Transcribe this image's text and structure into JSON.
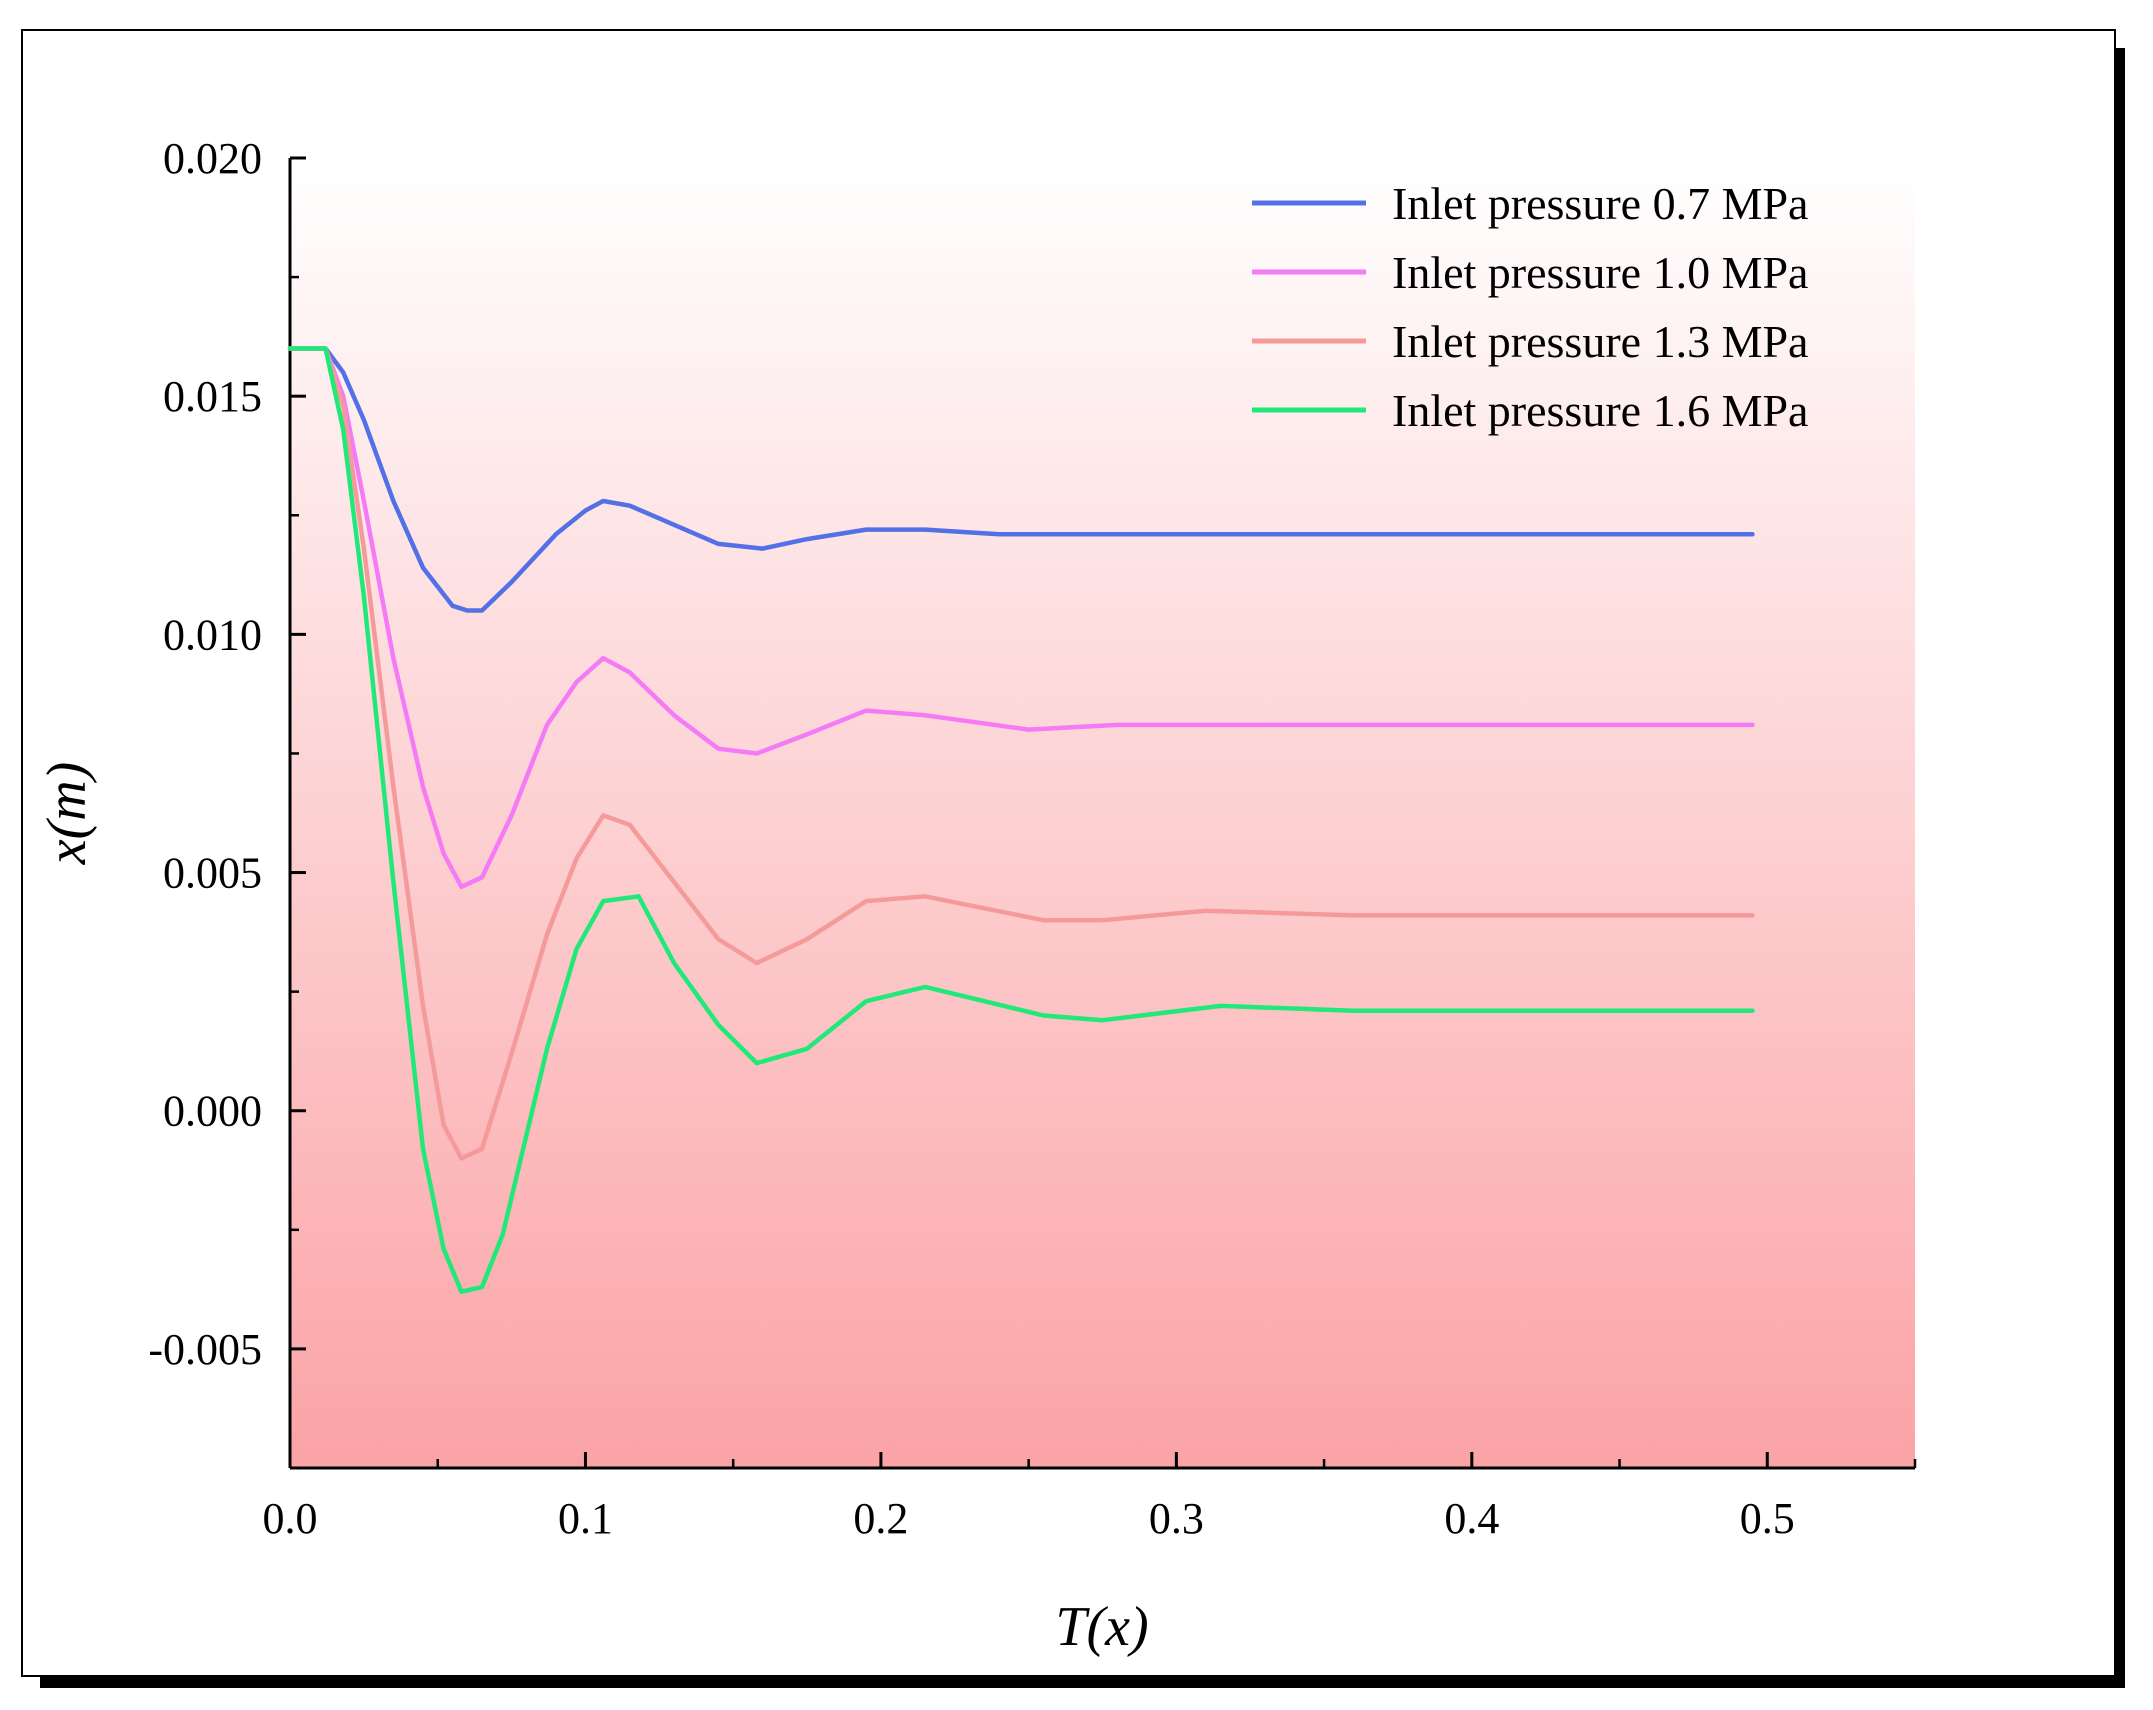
{
  "chart_data": {
    "type": "line",
    "title": "",
    "xlabel": "T(x)",
    "ylabel": "x(m)",
    "xlim": [
      0.0,
      0.55
    ],
    "ylim": [
      -0.0075,
      0.02
    ],
    "x_ticks": [
      0.0,
      0.1,
      0.2,
      0.3,
      0.4,
      0.5
    ],
    "x_tick_labels": [
      "0.0",
      "0.1",
      "0.2",
      "0.3",
      "0.4",
      "0.5"
    ],
    "y_ticks": [
      -0.005,
      0.0,
      0.005,
      0.01,
      0.015,
      0.02
    ],
    "y_tick_labels": [
      "-0.005",
      "0.000",
      "0.005",
      "0.010",
      "0.015",
      "0.020"
    ],
    "grid": false,
    "legend_position": "top-right",
    "background_gradient": [
      "#ffffff",
      "#fba3a6"
    ],
    "series": [
      {
        "name": "Inlet pressure 0.7 MPa",
        "color": "#5470e6",
        "x": [
          0.0,
          0.008,
          0.012,
          0.018,
          0.025,
          0.035,
          0.045,
          0.055,
          0.06,
          0.065,
          0.075,
          0.09,
          0.1,
          0.106,
          0.115,
          0.13,
          0.145,
          0.16,
          0.175,
          0.195,
          0.215,
          0.24,
          0.27,
          0.3,
          0.35,
          0.4,
          0.45,
          0.495
        ],
        "y": [
          0.016,
          0.016,
          0.016,
          0.0155,
          0.0145,
          0.0128,
          0.0114,
          0.0106,
          0.0105,
          0.0105,
          0.0111,
          0.0121,
          0.0126,
          0.0128,
          0.0127,
          0.0123,
          0.0119,
          0.0118,
          0.012,
          0.0122,
          0.0122,
          0.0121,
          0.0121,
          0.0121,
          0.0121,
          0.0121,
          0.0121,
          0.0121
        ]
      },
      {
        "name": "Inlet pressure 1.0 MPa",
        "color": "#f57af5",
        "x": [
          0.0,
          0.008,
          0.012,
          0.018,
          0.025,
          0.035,
          0.045,
          0.052,
          0.058,
          0.065,
          0.075,
          0.087,
          0.097,
          0.106,
          0.115,
          0.13,
          0.145,
          0.158,
          0.175,
          0.195,
          0.215,
          0.25,
          0.28,
          0.31,
          0.35,
          0.4,
          0.45,
          0.495
        ],
        "y": [
          0.016,
          0.016,
          0.016,
          0.015,
          0.0128,
          0.0095,
          0.0068,
          0.0054,
          0.0047,
          0.0049,
          0.0062,
          0.0081,
          0.009,
          0.0095,
          0.0092,
          0.0083,
          0.0076,
          0.0075,
          0.0079,
          0.0084,
          0.0083,
          0.008,
          0.0081,
          0.0081,
          0.0081,
          0.0081,
          0.0081,
          0.0081
        ]
      },
      {
        "name": "Inlet pressure 1.3 MPa",
        "color": "#f59a9a",
        "x": [
          0.0,
          0.008,
          0.012,
          0.018,
          0.025,
          0.035,
          0.045,
          0.052,
          0.058,
          0.065,
          0.075,
          0.087,
          0.097,
          0.106,
          0.115,
          0.13,
          0.145,
          0.158,
          0.175,
          0.195,
          0.215,
          0.255,
          0.275,
          0.31,
          0.36,
          0.4,
          0.45,
          0.495
        ],
        "y": [
          0.016,
          0.016,
          0.016,
          0.0148,
          0.0118,
          0.0068,
          0.0022,
          -0.0003,
          -0.001,
          -0.0008,
          0.0012,
          0.0037,
          0.0053,
          0.0062,
          0.006,
          0.0048,
          0.0036,
          0.0031,
          0.0036,
          0.0044,
          0.0045,
          0.004,
          0.004,
          0.0042,
          0.0041,
          0.0041,
          0.0041,
          0.0041
        ]
      },
      {
        "name": "Inlet pressure 1.6 MPa",
        "color": "#22e87a",
        "x": [
          0.0,
          0.008,
          0.012,
          0.018,
          0.025,
          0.035,
          0.045,
          0.052,
          0.058,
          0.065,
          0.072,
          0.087,
          0.097,
          0.106,
          0.118,
          0.13,
          0.145,
          0.158,
          0.175,
          0.195,
          0.215,
          0.235,
          0.255,
          0.275,
          0.315,
          0.36,
          0.4,
          0.45,
          0.495
        ],
        "y": [
          0.016,
          0.016,
          0.016,
          0.0143,
          0.0108,
          0.0048,
          -0.0008,
          -0.0029,
          -0.0038,
          -0.0037,
          -0.0026,
          0.0013,
          0.0034,
          0.0044,
          0.0045,
          0.0031,
          0.0018,
          0.001,
          0.0013,
          0.0023,
          0.0026,
          0.0023,
          0.002,
          0.0019,
          0.0022,
          0.0021,
          0.0021,
          0.0021,
          0.0021
        ]
      }
    ]
  }
}
